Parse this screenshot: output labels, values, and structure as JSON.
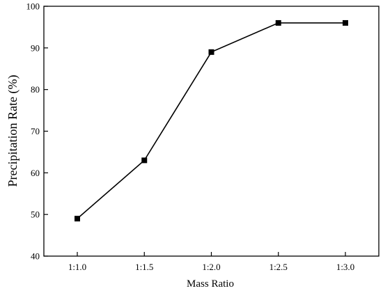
{
  "chart_data": {
    "type": "line",
    "title": "",
    "xlabel": "Mass Ratio",
    "ylabel": "Precipitation Rate (%)",
    "categories": [
      "1:1.0",
      "1:1.5",
      "1:2.0",
      "1:2.5",
      "1:3.0"
    ],
    "series": [
      {
        "values": [
          49,
          63,
          89,
          96,
          96
        ],
        "color": "#000000",
        "marker": "square"
      }
    ],
    "ylim": [
      40,
      100
    ],
    "yticks": [
      40,
      50,
      60,
      70,
      80,
      90,
      100
    ],
    "grid": false,
    "legend": "none"
  }
}
